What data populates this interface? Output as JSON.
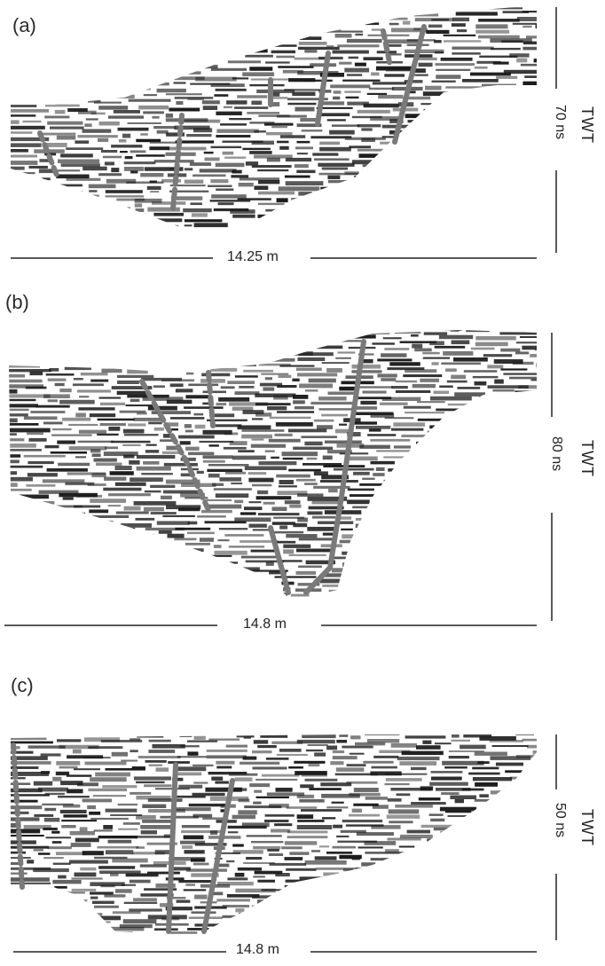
{
  "panels": [
    {
      "label": "(a)",
      "distance": "14.25 m",
      "time": "70 ns",
      "axis": "TWT"
    },
    {
      "label": "(b)",
      "distance": "14.8 m",
      "time": "80 ns",
      "axis": "TWT"
    },
    {
      "label": "(c)",
      "distance": "14.8 m",
      "time": "50 ns",
      "axis": "TWT"
    }
  ],
  "colors": {
    "reflector": "#1a1a1a",
    "fault": "#7a7a7a",
    "background": "#ffffff"
  }
}
